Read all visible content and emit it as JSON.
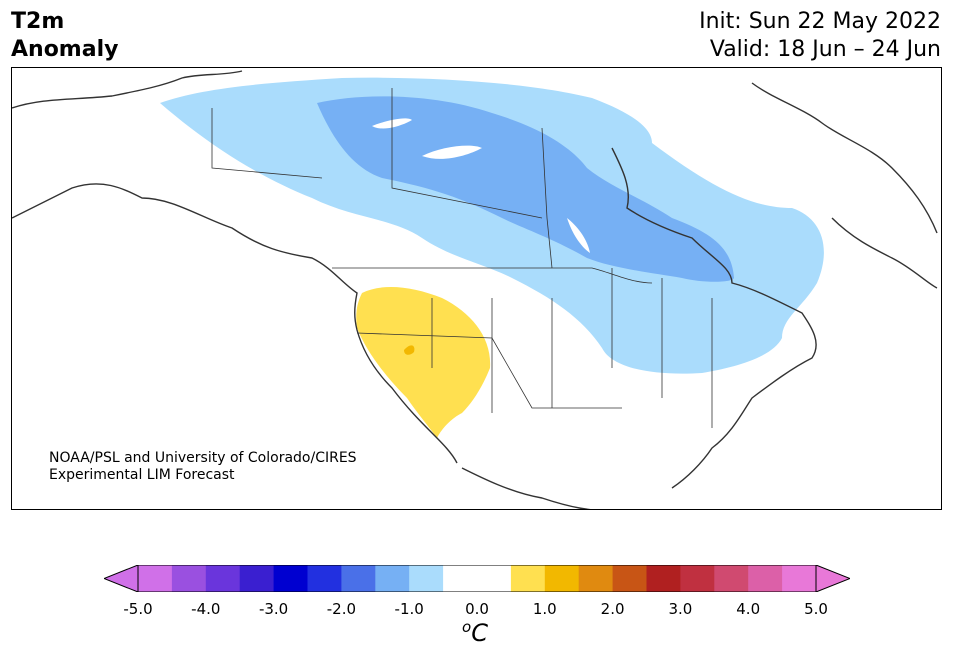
{
  "header": {
    "title_line1": "T2m",
    "title_line2": "Anomaly",
    "init": "Init: Sun 22 May 2022",
    "valid": "Valid: 18 Jun – 24 Jun"
  },
  "credit": {
    "line1": "NOAA/PSL and University of Colorado/CIRES",
    "line2": "Experimental LIM Forecast"
  },
  "colorbar": {
    "unit_base": "C",
    "unit_sup": "o",
    "ticks": [
      "-5.0",
      "-4.0",
      "-3.0",
      "-2.0",
      "-1.0",
      "0.0",
      "1.0",
      "2.0",
      "3.0",
      "4.0",
      "5.0"
    ],
    "colors": [
      "#d070e8",
      "#9a50e0",
      "#6a35dc",
      "#3a1fd0",
      "#0000d0",
      "#2230e0",
      "#4a70e8",
      "#76b0f4",
      "#aadcfc",
      "#ffffff",
      "#ffffff",
      "#ffe050",
      "#f2b800",
      "#e08a10",
      "#c85515",
      "#b02020",
      "#c03040",
      "#d04a70",
      "#dc60a8",
      "#e878d8"
    ],
    "min_color": "#d070e8",
    "max_color": "#e878d8"
  }
}
